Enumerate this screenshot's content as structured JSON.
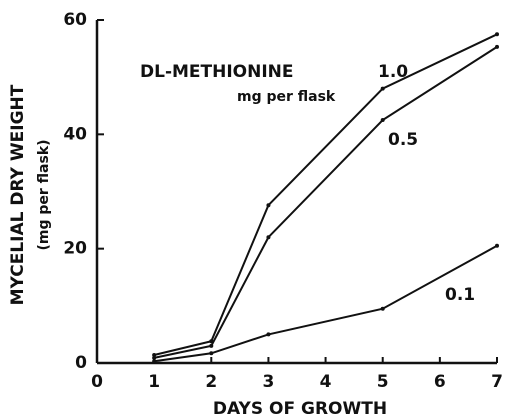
{
  "chart_data": {
    "type": "line",
    "xlabel": "DAYS OF GROWTH",
    "ylabel": "MYCELIAL DRY WEIGHT",
    "ylabel_sub": "(mg per flask)",
    "annotations": [
      "DL-METHIONINE",
      "mg per flask"
    ],
    "x": [
      1,
      2,
      3,
      5,
      7
    ],
    "series": [
      {
        "name": "1.0",
        "color": "#111111",
        "values": [
          1.4,
          3.8,
          27.6,
          48,
          57.5
        ]
      },
      {
        "name": "0.5",
        "color": "#111111",
        "values": [
          0.9,
          3,
          22,
          42.5,
          55.3
        ]
      },
      {
        "name": "0.1",
        "color": "#111111",
        "values": [
          0.3,
          1.7,
          5,
          9.5,
          20.5
        ]
      }
    ],
    "xlim": [
      0,
      7
    ],
    "xticks": [
      0,
      1,
      2,
      3,
      4,
      5,
      6,
      7
    ],
    "ylim": [
      0,
      60
    ],
    "yticks": [
      0,
      20,
      40,
      60
    ]
  }
}
